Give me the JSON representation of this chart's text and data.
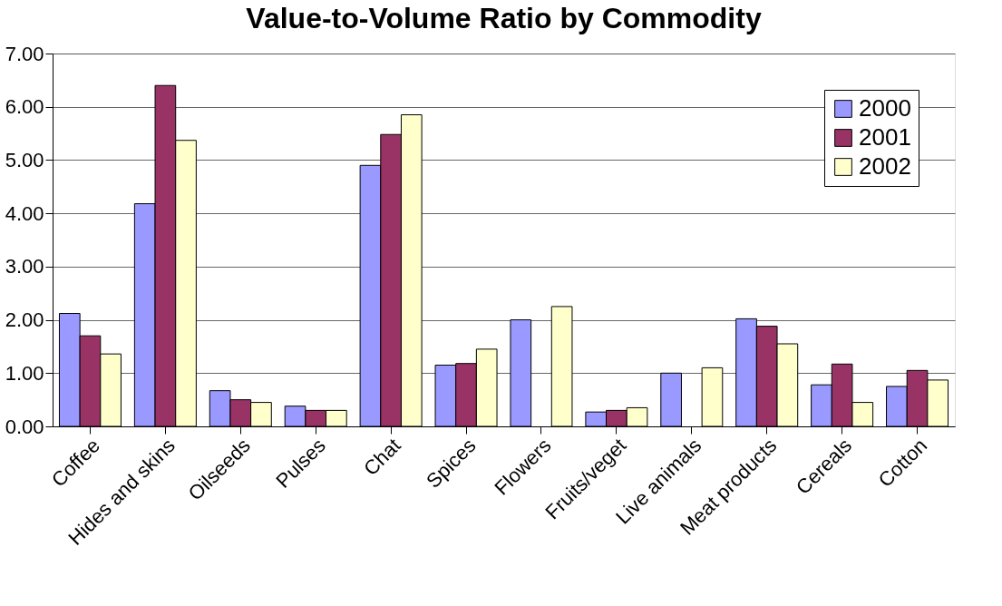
{
  "chart_data": {
    "type": "bar",
    "title": "Value-to-Volume Ratio by Commodity",
    "categories": [
      "Coffee",
      "Hides and skins",
      "Oilseeds",
      "Pulses",
      "Chat",
      "Spices",
      "Flowers",
      "Fruits/veget",
      "Live animals",
      "Meat products",
      "Cereals",
      "Cotton"
    ],
    "series": [
      {
        "name": "2000",
        "color": "#9999ff",
        "values": [
          2.12,
          4.18,
          0.67,
          0.38,
          4.9,
          1.15,
          2.0,
          0.27,
          1.0,
          2.02,
          0.78,
          0.75
        ]
      },
      {
        "name": "2001",
        "color": "#993366",
        "values": [
          1.7,
          6.4,
          0.5,
          0.3,
          5.48,
          1.18,
          null,
          0.3,
          null,
          1.88,
          1.17,
          1.05
        ]
      },
      {
        "name": "2002",
        "color": "#ffffcc",
        "values": [
          1.36,
          5.37,
          0.45,
          0.3,
          5.85,
          1.45,
          2.25,
          0.35,
          1.1,
          1.55,
          0.45,
          0.87
        ]
      }
    ],
    "ylim": [
      0,
      7
    ],
    "yticks": [
      {
        "value": 0,
        "label": "0.00"
      },
      {
        "value": 1,
        "label": "1.00"
      },
      {
        "value": 2,
        "label": "2.00"
      },
      {
        "value": 3,
        "label": "3.00"
      },
      {
        "value": 4,
        "label": "4.00"
      },
      {
        "value": 5,
        "label": "5.00"
      },
      {
        "value": 6,
        "label": "6.00"
      },
      {
        "value": 7,
        "label": "7.00"
      }
    ],
    "grid": "y",
    "legend": "top right"
  }
}
